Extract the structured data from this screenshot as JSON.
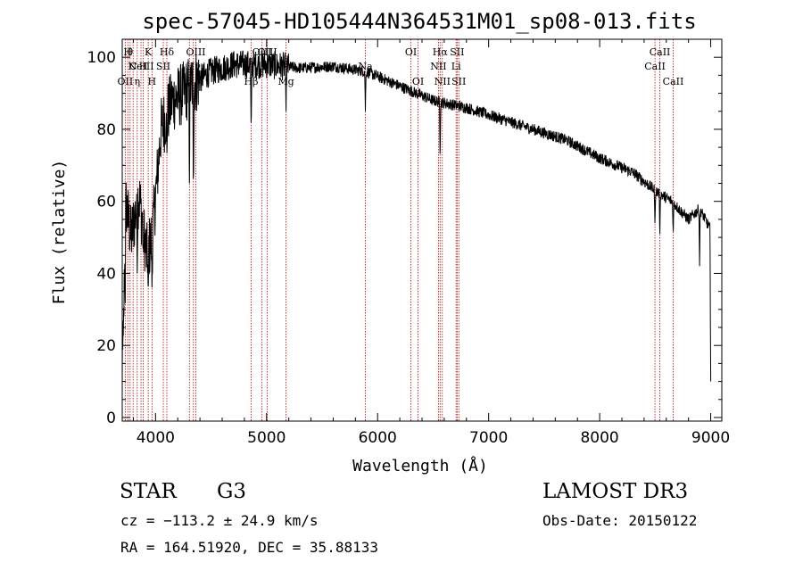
{
  "chart_data": {
    "type": "line",
    "title": "spec-57045-HD105444N364531M01_sp08-013.fits",
    "xlabel": "Wavelength (Å)",
    "ylabel": "Flux (relative)",
    "xlim": [
      3700,
      9100
    ],
    "ylim": [
      -1,
      105
    ],
    "xticks": [
      4000,
      5000,
      6000,
      7000,
      8000,
      9000
    ],
    "yticks": [
      0,
      20,
      40,
      60,
      80,
      100
    ],
    "xtick_labels": [
      "4000",
      "5000",
      "6000",
      "7000",
      "8000",
      "9000"
    ],
    "ytick_labels": [
      "0",
      "20",
      "40",
      "60",
      "80",
      "100"
    ],
    "grid": false,
    "spectrum_envelope": [
      {
        "x": 3700,
        "y": 2
      },
      {
        "x": 3730,
        "y": 60
      },
      {
        "x": 3780,
        "y": 50
      },
      {
        "x": 3850,
        "y": 62
      },
      {
        "x": 3920,
        "y": 45
      },
      {
        "x": 3970,
        "y": 50
      },
      {
        "x": 4050,
        "y": 80
      },
      {
        "x": 4150,
        "y": 88
      },
      {
        "x": 4250,
        "y": 90
      },
      {
        "x": 4350,
        "y": 93
      },
      {
        "x": 4500,
        "y": 96
      },
      {
        "x": 4700,
        "y": 98
      },
      {
        "x": 5000,
        "y": 98
      },
      {
        "x": 5300,
        "y": 97
      },
      {
        "x": 5600,
        "y": 97.5
      },
      {
        "x": 5900,
        "y": 96
      },
      {
        "x": 6200,
        "y": 92
      },
      {
        "x": 6500,
        "y": 88
      },
      {
        "x": 6800,
        "y": 86
      },
      {
        "x": 7100,
        "y": 83
      },
      {
        "x": 7400,
        "y": 80
      },
      {
        "x": 7700,
        "y": 77
      },
      {
        "x": 8000,
        "y": 72
      },
      {
        "x": 8300,
        "y": 68
      },
      {
        "x": 8500,
        "y": 63
      },
      {
        "x": 8650,
        "y": 60
      },
      {
        "x": 8800,
        "y": 55
      },
      {
        "x": 8900,
        "y": 58
      },
      {
        "x": 9000,
        "y": 52
      }
    ],
    "absorption_lines": [
      {
        "x": 3727,
        "y": 30
      },
      {
        "x": 3835,
        "y": 40
      },
      {
        "x": 3889,
        "y": 45
      },
      {
        "x": 3934,
        "y": 33
      },
      {
        "x": 3968,
        "y": 35
      },
      {
        "x": 4102,
        "y": 72
      },
      {
        "x": 4305,
        "y": 65
      },
      {
        "x": 4341,
        "y": 62
      },
      {
        "x": 4861,
        "y": 78
      },
      {
        "x": 5175,
        "y": 85
      },
      {
        "x": 5890,
        "y": 85
      },
      {
        "x": 6563,
        "y": 72
      },
      {
        "x": 8498,
        "y": 53
      },
      {
        "x": 8542,
        "y": 50
      },
      {
        "x": 8662,
        "y": 51
      },
      {
        "x": 8900,
        "y": 42
      },
      {
        "x": 9000,
        "y": 10
      }
    ],
    "lines": [
      {
        "x": 3727,
        "label": "OII",
        "row": 3
      },
      {
        "x": 3750,
        "label": "H",
        "row": 1
      },
      {
        "x": 3771,
        "label": "θ",
        "row": 1
      },
      {
        "x": 3798,
        "label": "C",
        "row": 2
      },
      {
        "x": 3835,
        "label": "η",
        "row": 3
      },
      {
        "x": 3869,
        "label": "NeIII",
        "row": 2
      },
      {
        "x": 3889,
        "label": "H",
        "row": 2
      },
      {
        "x": 3934,
        "label": "K",
        "row": 1
      },
      {
        "x": 3968,
        "label": "H",
        "row": 3
      },
      {
        "x": 4070,
        "label": "SII",
        "row": 2
      },
      {
        "x": 4102,
        "label": "Hδ",
        "row": 1
      },
      {
        "x": 4305,
        "label": "G",
        "row": 3
      },
      {
        "x": 4341,
        "label": "Hγ",
        "row": 2
      },
      {
        "x": 4363,
        "label": "OIII",
        "row": 1
      },
      {
        "x": 4861,
        "label": "Hβ",
        "row": 3
      },
      {
        "x": 4959,
        "label": "OIII",
        "row": 1
      },
      {
        "x": 5007,
        "label": "OIII",
        "row": 1
      },
      {
        "x": 5175,
        "label": "Mg",
        "row": 3
      },
      {
        "x": 5890,
        "label": "Na",
        "row": 2
      },
      {
        "x": 6300,
        "label": "OI",
        "row": 1
      },
      {
        "x": 6364,
        "label": "OI",
        "row": 3
      },
      {
        "x": 6548,
        "label": "NII",
        "row": 2
      },
      {
        "x": 6563,
        "label": "Hα",
        "row": 1
      },
      {
        "x": 6583,
        "label": "NII",
        "row": 3
      },
      {
        "x": 6707,
        "label": "Li",
        "row": 2
      },
      {
        "x": 6716,
        "label": "SII",
        "row": 1
      },
      {
        "x": 6731,
        "label": "SII",
        "row": 3
      },
      {
        "x": 8498,
        "label": "CaII",
        "row": 2
      },
      {
        "x": 8542,
        "label": "CaII",
        "row": 1
      },
      {
        "x": 8662,
        "label": "CaII",
        "row": 3
      }
    ]
  },
  "info": {
    "object_class": "STAR",
    "subclass": "G3",
    "survey": "LAMOST DR3",
    "redshift_line": "cz = −113.2 ± 24.9 km/s",
    "obs_date_line": "Obs-Date: 20150122",
    "coords_line": "RA = 164.51920, DEC =  35.88133"
  },
  "colors": {
    "spectrum": "#000000",
    "line_markers": "#c00000",
    "axes": "#000000"
  }
}
